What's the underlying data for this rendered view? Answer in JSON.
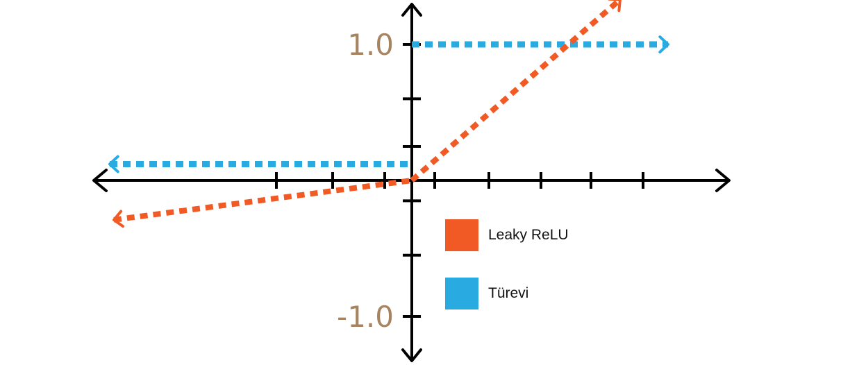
{
  "chart_data": {
    "type": "line",
    "title": "",
    "xlabel": "",
    "ylabel": "",
    "xlim": [
      -1.55,
      1.55
    ],
    "ylim": [
      -1.26,
      1.35
    ],
    "y_tick_labels": [
      {
        "value": 1.0,
        "label": "1.0"
      },
      {
        "value": -1.0,
        "label": "-1.0"
      }
    ],
    "x_ticks": [
      -0.65,
      -0.38,
      -0.13,
      0.11,
      0.37,
      0.62,
      0.86,
      1.11
    ],
    "y_ticks": [
      1.0,
      0.6,
      0.25,
      -0.15,
      -0.55,
      -1.0
    ],
    "series": [
      {
        "name": "Leaky ReLU",
        "color": "#F15A24",
        "x": [
          -1.43,
          0.0,
          1.0
        ],
        "y": [
          -0.29,
          0.0,
          1.33
        ],
        "style": "dotted-arrow"
      },
      {
        "name": "Türevi",
        "color": "#29ABE2",
        "segments": [
          {
            "x": [
              -1.45,
              0.0
            ],
            "y": [
              0.12,
              0.12
            ]
          },
          {
            "x": [
              0.0,
              1.23
            ],
            "y": [
              1.0,
              1.0
            ]
          }
        ],
        "style": "dotted-arrow"
      }
    ],
    "legend": {
      "position": "bottom-right",
      "items": [
        {
          "label": "Leaky ReLU",
          "color": "#F15A24"
        },
        {
          "label": "Türevi",
          "color": "#29ABE2"
        }
      ]
    },
    "tick_label_color": "#A68460",
    "axis_color": "#000000"
  }
}
